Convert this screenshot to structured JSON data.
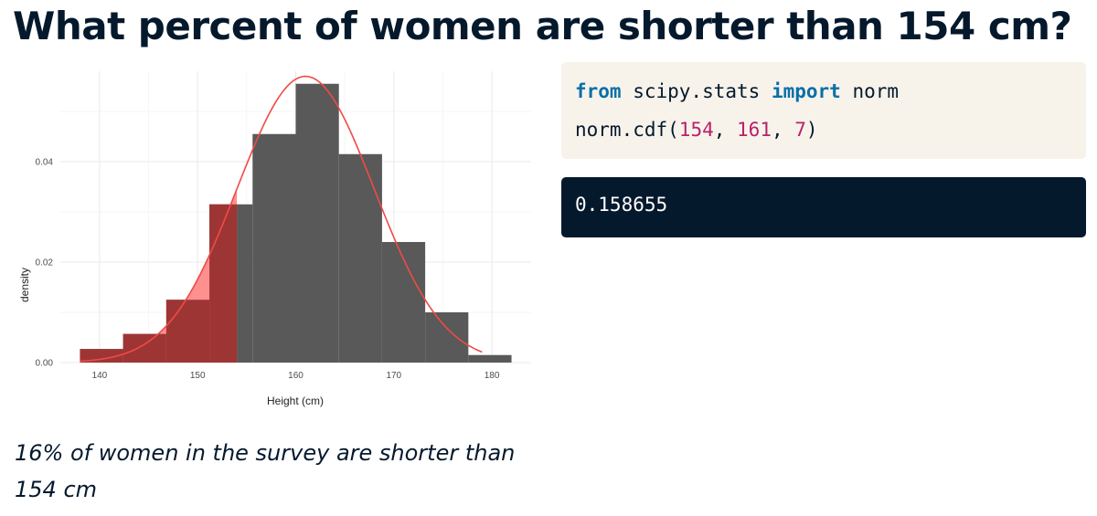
{
  "page": {
    "title": "What percent of women are shorter than 154 cm?",
    "caption": "16% of women in the survey are shorter than 154 cm"
  },
  "code": {
    "line1": {
      "kw_from": "from",
      "module": " scipy.stats ",
      "kw_import": "import",
      "name": " norm"
    },
    "line2": {
      "func": "norm.cdf(",
      "arg1": "154",
      "sep1": ", ",
      "arg2": "161",
      "sep2": ", ",
      "arg3": "7",
      "close": ")"
    }
  },
  "output": {
    "value": "0.158655"
  },
  "chart_data": {
    "type": "bar",
    "xlabel": "Height (cm)",
    "ylabel": "density",
    "xlim": [
      136,
      184
    ],
    "ylim": [
      0,
      0.058
    ],
    "x_ticks": [
      140,
      150,
      160,
      170,
      180
    ],
    "y_ticks": [
      0.0,
      0.02,
      0.04
    ],
    "y_tick_labels": [
      "0.00",
      "0.02",
      "0.04"
    ],
    "grid": true,
    "bin_edges": [
      138.0,
      142.4,
      146.8,
      151.2,
      155.6,
      160.0,
      164.4,
      168.8,
      173.2,
      177.6,
      182.0
    ],
    "bar_densities": [
      0.0027,
      0.0057,
      0.0125,
      0.0315,
      0.0455,
      0.0555,
      0.0415,
      0.024,
      0.01,
      0.0015
    ],
    "bar_color": "#595959",
    "normal_curve": {
      "mean": 161,
      "sd": 7,
      "x_range": [
        138,
        179
      ],
      "color": "#f04a46"
    },
    "shaded_region": {
      "x_max": 154,
      "area_color": "#ff8a8a",
      "overlap_color": "#9e3535"
    }
  }
}
